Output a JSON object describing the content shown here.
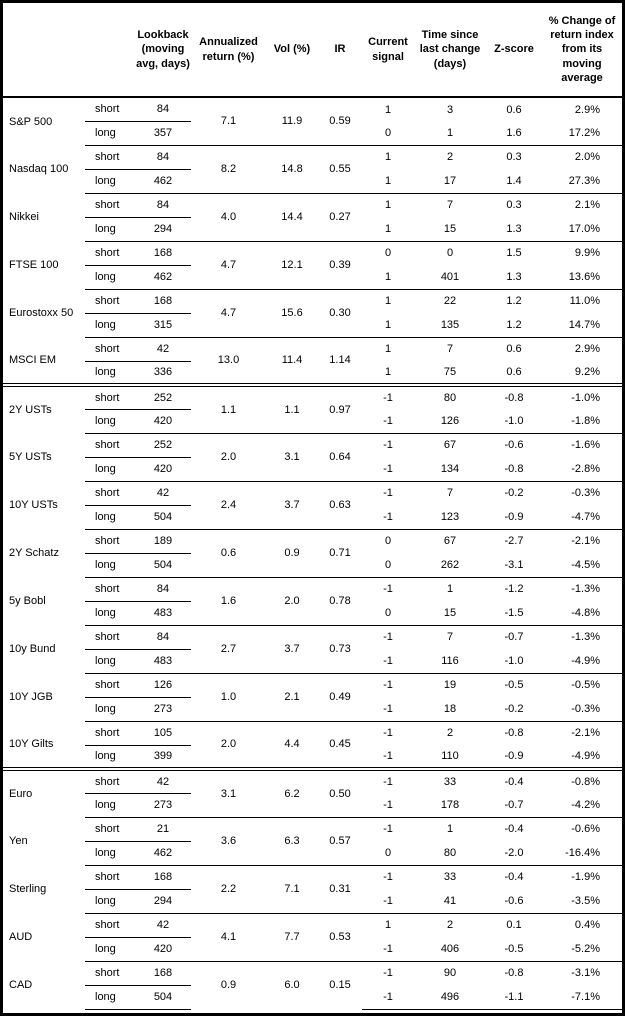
{
  "colors": {
    "text": "#000000",
    "background": "#ffffff",
    "border": "#000000"
  },
  "chart_data": {
    "type": "table",
    "headers": [
      "",
      "",
      "Lookback (moving avg, days)",
      "Annualized return (%)",
      "Vol (%)",
      "IR",
      "Current signal",
      "Time since last change (days)",
      "Z-score",
      "% Change of return index from its moving average"
    ],
    "sections": [
      {
        "groups": [
          {
            "name": "S&P 500",
            "annualized_return": "7.1",
            "vol": "11.9",
            "ir": "0.59",
            "rows": [
              {
                "period": "short",
                "lookback": "84",
                "signal": "1",
                "days_since_change": "3",
                "z_score": "0.6",
                "pct_change": "2.9%"
              },
              {
                "period": "long",
                "lookback": "357",
                "signal": "0",
                "days_since_change": "1",
                "z_score": "1.6",
                "pct_change": "17.2%"
              }
            ]
          },
          {
            "name": "Nasdaq 100",
            "annualized_return": "8.2",
            "vol": "14.8",
            "ir": "0.55",
            "rows": [
              {
                "period": "short",
                "lookback": "84",
                "signal": "1",
                "days_since_change": "2",
                "z_score": "0.3",
                "pct_change": "2.0%"
              },
              {
                "period": "long",
                "lookback": "462",
                "signal": "1",
                "days_since_change": "17",
                "z_score": "1.4",
                "pct_change": "27.3%"
              }
            ]
          },
          {
            "name": "Nikkei",
            "annualized_return": "4.0",
            "vol": "14.4",
            "ir": "0.27",
            "rows": [
              {
                "period": "short",
                "lookback": "84",
                "signal": "1",
                "days_since_change": "7",
                "z_score": "0.3",
                "pct_change": "2.1%"
              },
              {
                "period": "long",
                "lookback": "294",
                "signal": "1",
                "days_since_change": "15",
                "z_score": "1.3",
                "pct_change": "17.0%"
              }
            ]
          },
          {
            "name": "FTSE 100",
            "annualized_return": "4.7",
            "vol": "12.1",
            "ir": "0.39",
            "rows": [
              {
                "period": "short",
                "lookback": "168",
                "signal": "0",
                "days_since_change": "0",
                "z_score": "1.5",
                "pct_change": "9.9%"
              },
              {
                "period": "long",
                "lookback": "462",
                "signal": "1",
                "days_since_change": "401",
                "z_score": "1.3",
                "pct_change": "13.6%"
              }
            ]
          },
          {
            "name": "Eurostoxx 50",
            "annualized_return": "4.7",
            "vol": "15.6",
            "ir": "0.30",
            "rows": [
              {
                "period": "short",
                "lookback": "168",
                "signal": "1",
                "days_since_change": "22",
                "z_score": "1.2",
                "pct_change": "11.0%"
              },
              {
                "period": "long",
                "lookback": "315",
                "signal": "1",
                "days_since_change": "135",
                "z_score": "1.2",
                "pct_change": "14.7%"
              }
            ]
          },
          {
            "name": "MSCI EM",
            "annualized_return": "13.0",
            "vol": "11.4",
            "ir": "1.14",
            "rows": [
              {
                "period": "short",
                "lookback": "42",
                "signal": "1",
                "days_since_change": "7",
                "z_score": "0.6",
                "pct_change": "2.9%"
              },
              {
                "period": "long",
                "lookback": "336",
                "signal": "1",
                "days_since_change": "75",
                "z_score": "0.6",
                "pct_change": "9.2%"
              }
            ]
          }
        ]
      },
      {
        "groups": [
          {
            "name": "2Y USTs",
            "annualized_return": "1.1",
            "vol": "1.1",
            "ir": "0.97",
            "rows": [
              {
                "period": "short",
                "lookback": "252",
                "signal": "-1",
                "days_since_change": "80",
                "z_score": "-0.8",
                "pct_change": "-1.0%"
              },
              {
                "period": "long",
                "lookback": "420",
                "signal": "-1",
                "days_since_change": "126",
                "z_score": "-1.0",
                "pct_change": "-1.8%"
              }
            ]
          },
          {
            "name": "5Y USTs",
            "annualized_return": "2.0",
            "vol": "3.1",
            "ir": "0.64",
            "rows": [
              {
                "period": "short",
                "lookback": "252",
                "signal": "-1",
                "days_since_change": "67",
                "z_score": "-0.6",
                "pct_change": "-1.6%"
              },
              {
                "period": "long",
                "lookback": "420",
                "signal": "-1",
                "days_since_change": "134",
                "z_score": "-0.8",
                "pct_change": "-2.8%"
              }
            ]
          },
          {
            "name": "10Y USTs",
            "annualized_return": "2.4",
            "vol": "3.7",
            "ir": "0.63",
            "rows": [
              {
                "period": "short",
                "lookback": "42",
                "signal": "-1",
                "days_since_change": "7",
                "z_score": "-0.2",
                "pct_change": "-0.3%"
              },
              {
                "period": "long",
                "lookback": "504",
                "signal": "-1",
                "days_since_change": "123",
                "z_score": "-0.9",
                "pct_change": "-4.7%"
              }
            ]
          },
          {
            "name": "2Y Schatz",
            "annualized_return": "0.6",
            "vol": "0.9",
            "ir": "0.71",
            "rows": [
              {
                "period": "short",
                "lookback": "189",
                "signal": "0",
                "days_since_change": "67",
                "z_score": "-2.7",
                "pct_change": "-2.1%"
              },
              {
                "period": "long",
                "lookback": "504",
                "signal": "0",
                "days_since_change": "262",
                "z_score": "-3.1",
                "pct_change": "-4.5%"
              }
            ]
          },
          {
            "name": "5y Bobl",
            "annualized_return": "1.6",
            "vol": "2.0",
            "ir": "0.78",
            "rows": [
              {
                "period": "short",
                "lookback": "84",
                "signal": "-1",
                "days_since_change": "1",
                "z_score": "-1.2",
                "pct_change": "-1.3%"
              },
              {
                "period": "long",
                "lookback": "483",
                "signal": "0",
                "days_since_change": "15",
                "z_score": "-1.5",
                "pct_change": "-4.8%"
              }
            ]
          },
          {
            "name": "10y Bund",
            "annualized_return": "2.7",
            "vol": "3.7",
            "ir": "0.73",
            "rows": [
              {
                "period": "short",
                "lookback": "84",
                "signal": "-1",
                "days_since_change": "7",
                "z_score": "-0.7",
                "pct_change": "-1.3%"
              },
              {
                "period": "long",
                "lookback": "483",
                "signal": "-1",
                "days_since_change": "116",
                "z_score": "-1.0",
                "pct_change": "-4.9%"
              }
            ]
          },
          {
            "name": "10Y JGB",
            "annualized_return": "1.0",
            "vol": "2.1",
            "ir": "0.49",
            "rows": [
              {
                "period": "short",
                "lookback": "126",
                "signal": "-1",
                "days_since_change": "19",
                "z_score": "-0.5",
                "pct_change": "-0.5%"
              },
              {
                "period": "long",
                "lookback": "273",
                "signal": "-1",
                "days_since_change": "18",
                "z_score": "-0.2",
                "pct_change": "-0.3%"
              }
            ]
          },
          {
            "name": "10Y Gilts",
            "annualized_return": "2.0",
            "vol": "4.4",
            "ir": "0.45",
            "rows": [
              {
                "period": "short",
                "lookback": "105",
                "signal": "-1",
                "days_since_change": "2",
                "z_score": "-0.8",
                "pct_change": "-2.1%"
              },
              {
                "period": "long",
                "lookback": "399",
                "signal": "-1",
                "days_since_change": "110",
                "z_score": "-0.9",
                "pct_change": "-4.9%"
              }
            ]
          }
        ]
      },
      {
        "groups": [
          {
            "name": "Euro",
            "annualized_return": "3.1",
            "vol": "6.2",
            "ir": "0.50",
            "rows": [
              {
                "period": "short",
                "lookback": "42",
                "signal": "-1",
                "days_since_change": "33",
                "z_score": "-0.4",
                "pct_change": "-0.8%"
              },
              {
                "period": "long",
                "lookback": "273",
                "signal": "-1",
                "days_since_change": "178",
                "z_score": "-0.7",
                "pct_change": "-4.2%"
              }
            ]
          },
          {
            "name": "Yen",
            "annualized_return": "3.6",
            "vol": "6.3",
            "ir": "0.57",
            "rows": [
              {
                "period": "short",
                "lookback": "21",
                "signal": "-1",
                "days_since_change": "1",
                "z_score": "-0.4",
                "pct_change": "-0.6%"
              },
              {
                "period": "long",
                "lookback": "462",
                "signal": "0",
                "days_since_change": "80",
                "z_score": "-2.0",
                "pct_change": "-16.4%"
              }
            ]
          },
          {
            "name": "Sterling",
            "annualized_return": "2.2",
            "vol": "7.1",
            "ir": "0.31",
            "rows": [
              {
                "period": "short",
                "lookback": "168",
                "signal": "-1",
                "days_since_change": "33",
                "z_score": "-0.4",
                "pct_change": "-1.9%"
              },
              {
                "period": "long",
                "lookback": "294",
                "signal": "-1",
                "days_since_change": "41",
                "z_score": "-0.6",
                "pct_change": "-3.5%"
              }
            ]
          },
          {
            "name": "AUD",
            "annualized_return": "4.1",
            "vol": "7.7",
            "ir": "0.53",
            "rows": [
              {
                "period": "short",
                "lookback": "42",
                "signal": "1",
                "days_since_change": "2",
                "z_score": "0.1",
                "pct_change": "0.4%"
              },
              {
                "period": "long",
                "lookback": "420",
                "signal": "-1",
                "days_since_change": "406",
                "z_score": "-0.5",
                "pct_change": "-5.2%"
              }
            ]
          },
          {
            "name": "CAD",
            "annualized_return": "0.9",
            "vol": "6.0",
            "ir": "0.15",
            "rows": [
              {
                "period": "short",
                "lookback": "168",
                "signal": "-1",
                "days_since_change": "90",
                "z_score": "-0.8",
                "pct_change": "-3.1%"
              },
              {
                "period": "long",
                "lookback": "504",
                "signal": "-1",
                "days_since_change": "496",
                "z_score": "-1.1",
                "pct_change": "-7.1%"
              }
            ]
          }
        ]
      }
    ]
  }
}
